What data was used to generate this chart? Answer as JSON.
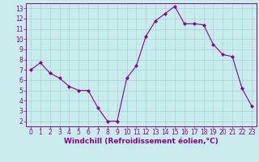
{
  "x": [
    0,
    1,
    2,
    3,
    4,
    5,
    6,
    7,
    8,
    9,
    10,
    11,
    12,
    13,
    14,
    15,
    16,
    17,
    18,
    19,
    20,
    21,
    22,
    23
  ],
  "y": [
    7,
    7.7,
    6.7,
    6.2,
    5.4,
    5.0,
    5.0,
    3.3,
    2.0,
    2.0,
    6.2,
    7.4,
    10.3,
    11.8,
    12.5,
    13.2,
    11.5,
    11.5,
    11.4,
    9.5,
    8.5,
    8.3,
    5.2,
    3.5
  ],
  "line_color": "#8B008B",
  "marker": "D",
  "marker_size": 2,
  "bg_color": "#c8ecec",
  "grid_color": "#a8d4d4",
  "xlabel": "Windchill (Refroidissement éolien,°C)",
  "xlabel_color": "#8B008B",
  "tick_color": "#8B008B",
  "ylim": [
    1.5,
    13.5
  ],
  "xlim": [
    -0.5,
    23.5
  ],
  "yticks": [
    2,
    3,
    4,
    5,
    6,
    7,
    8,
    9,
    10,
    11,
    12,
    13
  ],
  "xticks": [
    0,
    1,
    2,
    3,
    4,
    5,
    6,
    7,
    8,
    9,
    10,
    11,
    12,
    13,
    14,
    15,
    16,
    17,
    18,
    19,
    20,
    21,
    22,
    23
  ],
  "spine_color": "#8B008B",
  "axis_bg": "#c8ecec",
  "tick_fontsize": 5.5,
  "xlabel_fontsize": 6.5
}
